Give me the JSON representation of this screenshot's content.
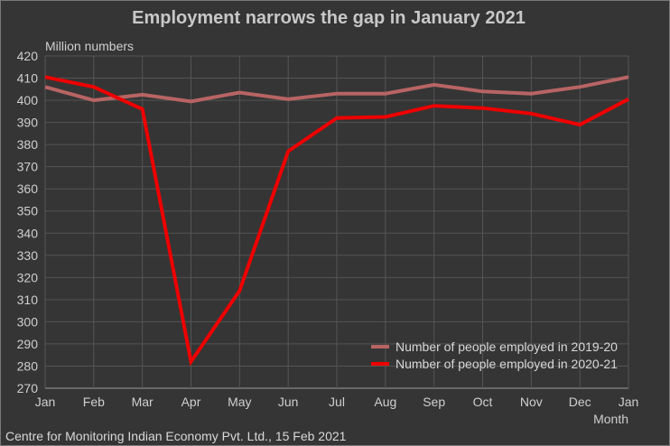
{
  "chart_data": {
    "type": "line",
    "title": "Employment narrows the gap in January 2021",
    "ylabel": "Million numbers",
    "xlabel": "Month",
    "categories": [
      "Jan",
      "Feb",
      "Mar",
      "Apr",
      "May",
      "Jun",
      "Jul",
      "Aug",
      "Sep",
      "Oct",
      "Nov",
      "Dec",
      "Jan"
    ],
    "ylim": [
      270,
      420
    ],
    "yticks": [
      270,
      280,
      290,
      300,
      310,
      320,
      330,
      340,
      350,
      360,
      370,
      380,
      390,
      400,
      410,
      420
    ],
    "grid": true,
    "legend_position": "bottom-right",
    "series": [
      {
        "name": "Number of people employed in 2019-20",
        "color": "#b86464",
        "values": [
          406,
          400,
          402.5,
          399.5,
          403.5,
          400.5,
          403,
          403,
          407,
          404,
          403,
          406,
          410.5
        ]
      },
      {
        "name": "Number of people employed in 2020-21",
        "color": "#ee0000",
        "values": [
          410.5,
          406,
          396,
          282,
          314,
          377,
          392,
          392.5,
          397.5,
          396.5,
          394,
          389,
          400.5
        ]
      }
    ],
    "source": "Centre for Monitoring Indian Economy Pvt. Ltd., 15 Feb 2021"
  }
}
